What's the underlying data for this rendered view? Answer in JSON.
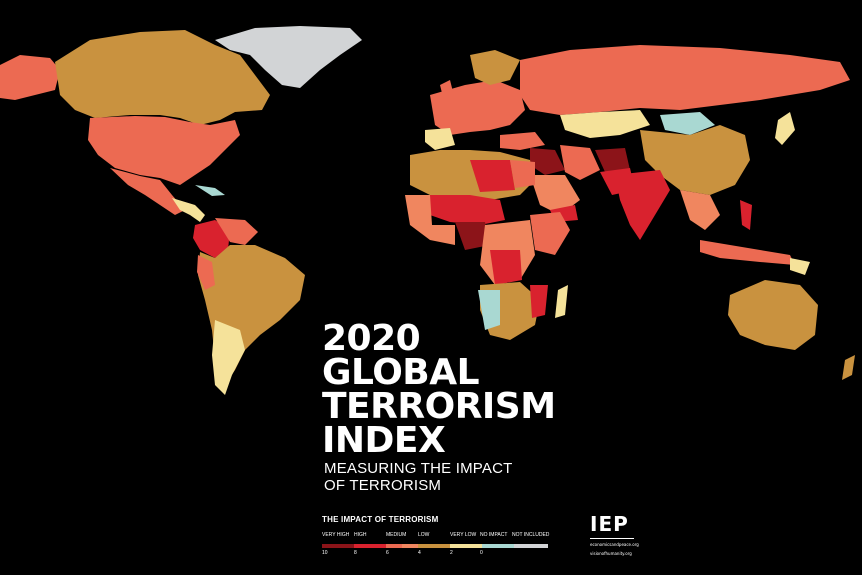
{
  "title_lines": [
    "2020",
    "GLOBAL",
    "TERRORISM",
    "INDEX"
  ],
  "subtitle_lines": [
    "MEASURING THE IMPACT",
    "OF TERRORISM"
  ],
  "legend": {
    "title": "THE IMPACT OF TERRORISM",
    "categories": [
      "VERY HIGH",
      "HIGH",
      "MEDIUM",
      "LOW",
      "VERY LOW",
      "NO IMPACT",
      "NOT INCLUDED"
    ],
    "ticks": [
      "10",
      "8",
      "6",
      "4",
      "2",
      "0"
    ],
    "colors": {
      "very_high": "#8c1419",
      "high": "#d9222e",
      "medium_high": "#ec6a52",
      "medium": "#f0865f",
      "low": "#c9923f",
      "very_low": "#f5e29a",
      "no_impact": "#a9d8d2",
      "not_included": "#d2d4d6"
    }
  },
  "org": {
    "logo": "IEP",
    "urls": [
      "economicsandpeace.org",
      "visionofhumanity.org"
    ]
  }
}
